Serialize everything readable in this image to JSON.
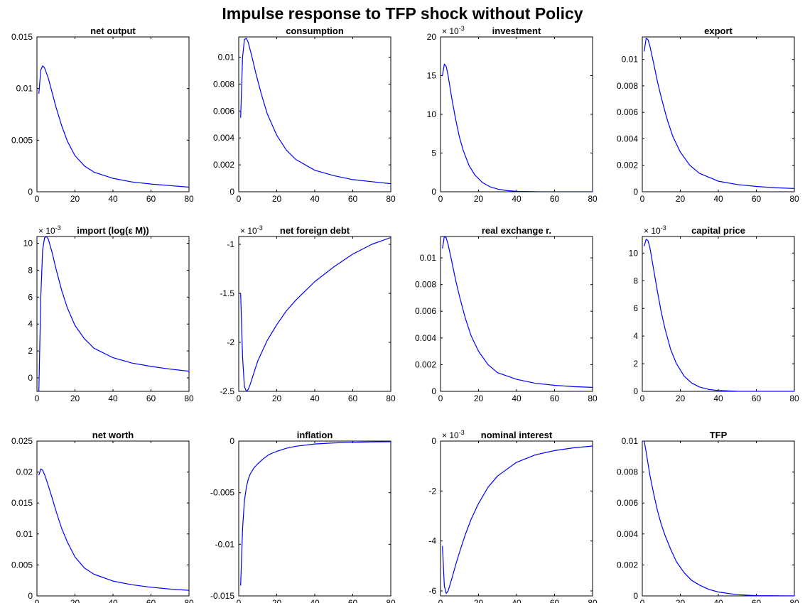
{
  "figure": {
    "title": "Impulse response to TFP shock without Policy",
    "line_color": "#0000ff"
  },
  "chart_data": [
    {
      "type": "line",
      "title": "net output",
      "exponent": "",
      "xlim": [
        0,
        80
      ],
      "ylim": [
        0,
        0.015
      ],
      "xticks": [
        0,
        20,
        40,
        60,
        80
      ],
      "yticks": [
        0,
        0.005,
        0.01,
        0.015
      ],
      "ytick_labels": [
        "0",
        "0.005",
        "0.01",
        "0.015"
      ],
      "x": [
        1,
        2,
        3,
        4,
        6,
        8,
        10,
        13,
        16,
        20,
        25,
        30,
        40,
        50,
        60,
        70,
        80
      ],
      "y": [
        0.0095,
        0.0118,
        0.0122,
        0.012,
        0.011,
        0.0096,
        0.0082,
        0.0064,
        0.0049,
        0.0035,
        0.0025,
        0.0019,
        0.0013,
        0.00095,
        0.00075,
        0.0006,
        0.00045
      ]
    },
    {
      "type": "line",
      "title": "consumption",
      "exponent": "",
      "xlim": [
        0,
        80
      ],
      "ylim": [
        0,
        0.0115
      ],
      "xticks": [
        0,
        20,
        40,
        60,
        80
      ],
      "yticks": [
        0,
        0.002,
        0.004,
        0.006,
        0.008,
        0.01
      ],
      "ytick_labels": [
        "0",
        "0.002",
        "0.004",
        "0.006",
        "0.008",
        "0.01"
      ],
      "x": [
        1,
        2,
        3,
        4,
        5,
        7,
        9,
        12,
        15,
        20,
        25,
        30,
        40,
        50,
        60,
        70,
        80
      ],
      "y": [
        0.0055,
        0.01,
        0.0113,
        0.0114,
        0.0111,
        0.01,
        0.0088,
        0.0072,
        0.0058,
        0.0042,
        0.0031,
        0.0024,
        0.0016,
        0.0012,
        0.0009,
        0.00075,
        0.0006
      ]
    },
    {
      "type": "line",
      "title": "investment",
      "exponent": "× 10^-3",
      "xlim": [
        0,
        80
      ],
      "ylim": [
        0,
        20
      ],
      "xticks": [
        0,
        20,
        40,
        60,
        80
      ],
      "yticks": [
        0,
        5,
        10,
        15,
        20
      ],
      "ytick_labels": [
        "0",
        "5",
        "10",
        "15",
        "20"
      ],
      "x": [
        1,
        2,
        3,
        4,
        6,
        8,
        10,
        12,
        15,
        18,
        22,
        26,
        30,
        35,
        40,
        50,
        60,
        80
      ],
      "y": [
        15,
        16.5,
        16.2,
        15.0,
        12.0,
        9.3,
        7.0,
        5.3,
        3.4,
        2.2,
        1.2,
        0.65,
        0.35,
        0.15,
        0.06,
        0.01,
        0,
        0
      ]
    },
    {
      "type": "line",
      "title": "export",
      "exponent": "",
      "xlim": [
        0,
        80
      ],
      "ylim": [
        0,
        0.0117
      ],
      "xticks": [
        0,
        20,
        40,
        60,
        80
      ],
      "yticks": [
        0,
        0.002,
        0.004,
        0.006,
        0.008,
        0.01
      ],
      "ytick_labels": [
        "0",
        "0.002",
        "0.004",
        "0.006",
        "0.008",
        "0.01"
      ],
      "x": [
        1,
        2,
        3,
        4,
        6,
        8,
        10,
        13,
        16,
        20,
        25,
        30,
        40,
        50,
        60,
        70,
        80
      ],
      "y": [
        0.0106,
        0.0116,
        0.0115,
        0.011,
        0.0097,
        0.0083,
        0.0071,
        0.0055,
        0.0042,
        0.003,
        0.002,
        0.0014,
        0.0008,
        0.00055,
        0.0004,
        0.0003,
        0.00025
      ]
    },
    {
      "type": "line",
      "title": "import (log(ε M))",
      "exponent": "× 10^-3",
      "xlim": [
        0,
        80
      ],
      "ylim": [
        -1,
        10.5
      ],
      "xticks": [
        0,
        20,
        40,
        60,
        80
      ],
      "yticks": [
        0,
        2,
        4,
        6,
        8,
        10
      ],
      "ytick_labels": [
        "0",
        "2",
        "4",
        "6",
        "8",
        "10"
      ],
      "x": [
        1,
        2,
        3,
        4,
        5,
        6,
        8,
        10,
        13,
        16,
        20,
        25,
        30,
        40,
        50,
        60,
        70,
        80
      ],
      "y": [
        -1.0,
        6.0,
        9.5,
        10.4,
        10.5,
        10.3,
        9.3,
        8.1,
        6.5,
        5.2,
        3.9,
        2.9,
        2.2,
        1.5,
        1.1,
        0.85,
        0.65,
        0.5
      ]
    },
    {
      "type": "line",
      "title": "net foreign debt",
      "exponent": "× 10^-3",
      "xlim": [
        0,
        80
      ],
      "ylim": [
        -2.5,
        -0.92
      ],
      "xticks": [
        0,
        20,
        40,
        60,
        80
      ],
      "yticks": [
        -2.5,
        -2,
        -1.5,
        -1
      ],
      "ytick_labels": [
        "-2.5",
        "-2",
        "-1.5",
        "-1"
      ],
      "x": [
        1,
        2,
        3,
        4,
        5,
        6,
        8,
        10,
        15,
        20,
        25,
        30,
        40,
        50,
        60,
        70,
        80
      ],
      "y": [
        -1.5,
        -2.15,
        -2.45,
        -2.5,
        -2.48,
        -2.43,
        -2.31,
        -2.19,
        -1.98,
        -1.82,
        -1.68,
        -1.57,
        -1.38,
        -1.23,
        -1.1,
        -1.0,
        -0.93
      ]
    },
    {
      "type": "line",
      "title": "real exchange r.",
      "exponent": "",
      "xlim": [
        0,
        80
      ],
      "ylim": [
        0,
        0.0116
      ],
      "xticks": [
        0,
        20,
        40,
        60,
        80
      ],
      "yticks": [
        0,
        0.002,
        0.004,
        0.006,
        0.008,
        0.01
      ],
      "ytick_labels": [
        "0",
        "0.002",
        "0.004",
        "0.006",
        "0.008",
        "0.01"
      ],
      "x": [
        1,
        2,
        3,
        4,
        6,
        8,
        10,
        13,
        16,
        20,
        25,
        30,
        40,
        50,
        60,
        70,
        80
      ],
      "y": [
        0.0107,
        0.0116,
        0.0115,
        0.011,
        0.0097,
        0.0083,
        0.0071,
        0.0055,
        0.0042,
        0.003,
        0.002,
        0.0014,
        0.0009,
        0.0006,
        0.00045,
        0.00035,
        0.0003
      ]
    },
    {
      "type": "line",
      "title": "capital price",
      "exponent": "× 10^-3",
      "xlim": [
        0,
        80
      ],
      "ylim": [
        0,
        11.2
      ],
      "xticks": [
        0,
        20,
        40,
        60,
        80
      ],
      "yticks": [
        0,
        2,
        4,
        6,
        8,
        10
      ],
      "ytick_labels": [
        "0",
        "2",
        "4",
        "6",
        "8",
        "10"
      ],
      "x": [
        1,
        2,
        3,
        4,
        6,
        8,
        10,
        12,
        15,
        18,
        22,
        26,
        30,
        35,
        40,
        50,
        60,
        80
      ],
      "y": [
        10.5,
        11.0,
        10.9,
        10.4,
        8.8,
        7.2,
        5.7,
        4.5,
        3.0,
        2.0,
        1.1,
        0.6,
        0.32,
        0.14,
        0.06,
        0.01,
        0,
        0
      ]
    },
    {
      "type": "line",
      "title": "net worth",
      "exponent": "",
      "xlim": [
        0,
        80
      ],
      "ylim": [
        0,
        0.025
      ],
      "xticks": [
        0,
        20,
        40,
        60,
        80
      ],
      "yticks": [
        0,
        0.005,
        0.01,
        0.015,
        0.02,
        0.025
      ],
      "ytick_labels": [
        "0",
        "0.005",
        "0.01",
        "0.015",
        "0.02",
        "0.025"
      ],
      "x": [
        1,
        2,
        3,
        4,
        6,
        8,
        10,
        13,
        16,
        20,
        25,
        30,
        40,
        50,
        60,
        70,
        80
      ],
      "y": [
        0.0195,
        0.0205,
        0.0203,
        0.0196,
        0.0178,
        0.0158,
        0.0137,
        0.0109,
        0.0087,
        0.0063,
        0.0045,
        0.0035,
        0.0024,
        0.0018,
        0.0014,
        0.0011,
        0.0009
      ]
    },
    {
      "type": "line",
      "title": "inflation",
      "exponent": "",
      "xlim": [
        0,
        80
      ],
      "ylim": [
        -0.015,
        0
      ],
      "xticks": [
        0,
        20,
        40,
        60,
        80
      ],
      "yticks": [
        -0.015,
        -0.01,
        -0.005,
        0
      ],
      "ytick_labels": [
        "-0.015",
        "-0.01",
        "-0.005",
        "0"
      ],
      "x": [
        1,
        2,
        3,
        4,
        5,
        6,
        8,
        10,
        13,
        16,
        20,
        25,
        30,
        40,
        50,
        60,
        70,
        80
      ],
      "y": [
        -0.014,
        -0.0085,
        -0.0058,
        -0.0045,
        -0.0037,
        -0.0032,
        -0.0026,
        -0.0022,
        -0.0017,
        -0.0013,
        -0.001,
        -0.0007,
        -0.0005,
        -0.00028,
        -0.00018,
        -0.00012,
        -8e-05,
        -6e-05
      ]
    },
    {
      "type": "line",
      "title": "nominal interest",
      "exponent": "× 10^-3",
      "xlim": [
        0,
        80
      ],
      "ylim": [
        -6.2,
        0
      ],
      "xticks": [
        0,
        20,
        40,
        60,
        80
      ],
      "yticks": [
        -6,
        -4,
        -2,
        0
      ],
      "ytick_labels": [
        "-6",
        "-4",
        "-2",
        "0"
      ],
      "x": [
        1,
        2,
        3,
        4,
        5,
        6,
        8,
        10,
        13,
        16,
        20,
        25,
        30,
        40,
        50,
        60,
        70,
        80
      ],
      "y": [
        -4.2,
        -5.8,
        -6.1,
        -6.0,
        -5.75,
        -5.5,
        -4.95,
        -4.45,
        -3.75,
        -3.15,
        -2.5,
        -1.85,
        -1.4,
        -0.85,
        -0.55,
        -0.38,
        -0.27,
        -0.2
      ]
    },
    {
      "type": "line",
      "title": "TFP",
      "exponent": "",
      "xlim": [
        0,
        80
      ],
      "ylim": [
        0,
        0.01
      ],
      "xticks": [
        0,
        20,
        40,
        60,
        80
      ],
      "yticks": [
        0,
        0.002,
        0.004,
        0.006,
        0.008,
        0.01
      ],
      "ytick_labels": [
        "0",
        "0.002",
        "0.004",
        "0.006",
        "0.008",
        "0.01"
      ],
      "x": [
        1,
        2,
        4,
        6,
        8,
        10,
        12,
        15,
        18,
        22,
        26,
        30,
        35,
        40,
        50,
        60,
        80
      ],
      "y": [
        0.01,
        0.0093,
        0.0078,
        0.0066,
        0.0055,
        0.0046,
        0.0039,
        0.003,
        0.0022,
        0.0015,
        0.001,
        0.0007,
        0.00042,
        0.00025,
        8e-05,
        2e-05,
        0
      ]
    }
  ]
}
